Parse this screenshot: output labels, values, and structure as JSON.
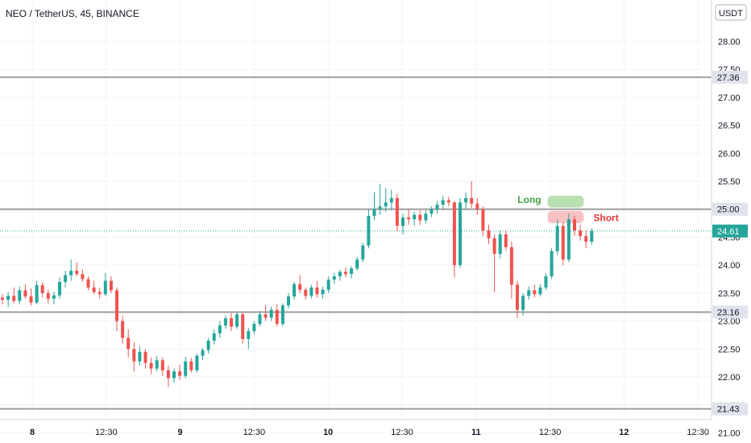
{
  "header": {
    "title": "NEO / TetherUS, 45, BINANCE"
  },
  "colors": {
    "up": "#26a69a",
    "down": "#ef5350",
    "grid": "#f0f3fa",
    "level": "#9e9e9e",
    "price_line": "#26a69a",
    "long_zone": "#b9e0b1",
    "short_zone": "#f8c2c5",
    "long_text": "#43a047",
    "short_text": "#e53935"
  },
  "chart_data": {
    "type": "candlestick",
    "title": "NEO / TetherUS, 45, BINANCE",
    "currency": "USDT",
    "ylim": [
      20.82,
      28.74
    ],
    "y_ticks": [
      "28.00",
      "27.50",
      "27.00",
      "26.50",
      "26.00",
      "25.50",
      "25.00",
      "24.50",
      "24.00",
      "23.50",
      "23.00",
      "22.50",
      "22.00",
      "21.50",
      "21.00"
    ],
    "x_ticks": [
      {
        "label": "8",
        "major": true
      },
      {
        "label": "12:30",
        "major": false
      },
      {
        "label": "9",
        "major": true
      },
      {
        "label": "12:30",
        "major": false
      },
      {
        "label": "10",
        "major": true
      },
      {
        "label": "12:30",
        "major": false
      },
      {
        "label": "11",
        "major": true
      },
      {
        "label": "12:30",
        "major": false
      },
      {
        "label": "12",
        "major": true
      },
      {
        "label": "12:30",
        "major": false
      }
    ],
    "levels": [
      {
        "value": 27.36,
        "label": "27.36"
      },
      {
        "value": 25.0,
        "label": "25.00"
      },
      {
        "value": 23.16,
        "label": "23.16"
      },
      {
        "value": 21.43,
        "label": "21.43"
      }
    ],
    "current_price": {
      "value": 24.61,
      "label": "24.61"
    },
    "annotations": [
      {
        "text": "Long",
        "kind": "long",
        "top": 25.24,
        "bottom": 25.03,
        "t0": 95.3,
        "t1": 101.6
      },
      {
        "text": "Short",
        "kind": "short",
        "top": 24.97,
        "bottom": 24.75,
        "t0": 95.3,
        "t1": 101.6
      }
    ],
    "candles": [
      [
        23.42,
        23.48,
        23.3,
        23.38
      ],
      [
        23.38,
        23.52,
        23.25,
        23.45
      ],
      [
        23.45,
        23.6,
        23.32,
        23.36
      ],
      [
        23.36,
        23.62,
        23.3,
        23.55
      ],
      [
        23.55,
        23.66,
        23.4,
        23.44
      ],
      [
        23.44,
        23.58,
        23.28,
        23.33
      ],
      [
        23.33,
        23.72,
        23.3,
        23.64
      ],
      [
        23.64,
        23.7,
        23.42,
        23.5
      ],
      [
        23.5,
        23.56,
        23.32,
        23.4
      ],
      [
        23.4,
        23.52,
        23.3,
        23.46
      ],
      [
        23.46,
        23.78,
        23.4,
        23.7
      ],
      [
        23.7,
        23.9,
        23.6,
        23.82
      ],
      [
        23.82,
        24.1,
        23.72,
        23.9
      ],
      [
        23.9,
        24.05,
        23.8,
        23.84
      ],
      [
        23.84,
        23.92,
        23.7,
        23.75
      ],
      [
        23.75,
        23.8,
        23.55,
        23.6
      ],
      [
        23.6,
        23.72,
        23.48,
        23.52
      ],
      [
        23.52,
        23.6,
        23.4,
        23.48
      ],
      [
        23.48,
        23.86,
        23.45,
        23.72
      ],
      [
        23.72,
        23.8,
        23.5,
        23.55
      ],
      [
        23.55,
        23.6,
        22.82,
        23.0
      ],
      [
        23.0,
        23.1,
        22.6,
        22.7
      ],
      [
        22.7,
        22.85,
        22.35,
        22.5
      ],
      [
        22.5,
        22.62,
        22.1,
        22.28
      ],
      [
        22.28,
        22.55,
        22.2,
        22.45
      ],
      [
        22.45,
        22.5,
        22.15,
        22.25
      ],
      [
        22.25,
        22.35,
        22.05,
        22.15
      ],
      [
        22.15,
        22.38,
        22.1,
        22.3
      ],
      [
        22.3,
        22.35,
        22.02,
        22.12
      ],
      [
        22.12,
        22.2,
        21.82,
        21.98
      ],
      [
        21.98,
        22.15,
        21.9,
        22.1
      ],
      [
        22.1,
        22.22,
        21.95,
        22.02
      ],
      [
        22.02,
        22.36,
        21.98,
        22.28
      ],
      [
        22.28,
        22.34,
        22.08,
        22.12
      ],
      [
        22.12,
        22.42,
        22.08,
        22.38
      ],
      [
        22.38,
        22.52,
        22.3,
        22.48
      ],
      [
        22.48,
        22.7,
        22.42,
        22.65
      ],
      [
        22.65,
        22.85,
        22.58,
        22.78
      ],
      [
        22.78,
        23.0,
        22.7,
        22.92
      ],
      [
        22.92,
        23.1,
        22.86,
        23.05
      ],
      [
        23.05,
        23.14,
        22.82,
        22.9
      ],
      [
        22.9,
        23.16,
        22.86,
        23.12
      ],
      [
        23.12,
        23.16,
        22.6,
        22.68
      ],
      [
        22.68,
        22.88,
        22.5,
        22.82
      ],
      [
        22.82,
        23.0,
        22.76,
        22.95
      ],
      [
        22.95,
        23.18,
        22.9,
        23.12
      ],
      [
        23.12,
        23.28,
        23.0,
        23.06
      ],
      [
        23.06,
        23.26,
        23.0,
        23.2
      ],
      [
        23.2,
        23.3,
        22.9,
        22.95
      ],
      [
        22.95,
        23.32,
        22.9,
        23.28
      ],
      [
        23.28,
        23.5,
        23.22,
        23.44
      ],
      [
        23.44,
        23.7,
        23.38,
        23.66
      ],
      [
        23.66,
        23.82,
        23.5,
        23.56
      ],
      [
        23.56,
        23.6,
        23.38,
        23.45
      ],
      [
        23.45,
        23.65,
        23.4,
        23.6
      ],
      [
        23.6,
        23.72,
        23.42,
        23.48
      ],
      [
        23.48,
        23.62,
        23.4,
        23.56
      ],
      [
        23.56,
        23.8,
        23.5,
        23.74
      ],
      [
        23.74,
        23.86,
        23.66,
        23.8
      ],
      [
        23.8,
        23.92,
        23.72,
        23.88
      ],
      [
        23.88,
        23.96,
        23.78,
        23.84
      ],
      [
        23.84,
        23.98,
        23.76,
        23.94
      ],
      [
        23.94,
        24.15,
        23.9,
        24.1
      ],
      [
        24.1,
        24.4,
        24.05,
        24.35
      ],
      [
        24.35,
        25.0,
        24.3,
        24.88
      ],
      [
        24.88,
        25.3,
        24.8,
        25.0
      ],
      [
        25.0,
        25.45,
        24.9,
        25.05
      ],
      [
        25.05,
        25.38,
        24.95,
        25.12
      ],
      [
        25.12,
        25.35,
        24.98,
        25.2
      ],
      [
        25.2,
        25.28,
        24.6,
        24.7
      ],
      [
        24.7,
        24.92,
        24.55,
        24.85
      ],
      [
        24.85,
        25.0,
        24.72,
        24.82
      ],
      [
        24.82,
        24.95,
        24.7,
        24.9
      ],
      [
        24.9,
        24.98,
        24.72,
        24.8
      ],
      [
        24.8,
        24.98,
        24.74,
        24.92
      ],
      [
        24.92,
        25.05,
        24.86,
        25.0
      ],
      [
        25.0,
        25.15,
        24.92,
        25.08
      ],
      [
        25.08,
        25.24,
        25.0,
        25.16
      ],
      [
        25.16,
        25.22,
        25.05,
        25.12
      ],
      [
        25.12,
        25.14,
        23.78,
        24.0
      ],
      [
        24.0,
        25.2,
        23.95,
        25.12
      ],
      [
        25.12,
        25.3,
        25.0,
        25.2
      ],
      [
        25.2,
        25.5,
        25.02,
        25.1
      ],
      [
        25.1,
        25.2,
        24.9,
        25.0
      ],
      [
        25.0,
        25.05,
        24.52,
        24.62
      ],
      [
        24.62,
        24.72,
        24.38,
        24.48
      ],
      [
        24.48,
        24.55,
        23.52,
        24.2
      ],
      [
        24.2,
        24.62,
        24.12,
        24.55
      ],
      [
        24.55,
        24.62,
        24.26,
        24.32
      ],
      [
        24.32,
        24.42,
        23.4,
        23.65
      ],
      [
        23.65,
        23.72,
        23.05,
        23.2
      ],
      [
        23.2,
        23.5,
        23.1,
        23.45
      ],
      [
        23.45,
        23.62,
        23.38,
        23.55
      ],
      [
        23.55,
        23.65,
        23.42,
        23.48
      ],
      [
        23.48,
        23.66,
        23.44,
        23.6
      ],
      [
        23.6,
        23.85,
        23.55,
        23.8
      ],
      [
        23.8,
        24.3,
        23.75,
        24.25
      ],
      [
        24.25,
        24.82,
        24.18,
        24.7
      ],
      [
        24.7,
        24.76,
        24.0,
        24.1
      ],
      [
        24.1,
        24.92,
        24.05,
        24.82
      ],
      [
        24.82,
        24.88,
        24.52,
        24.62
      ],
      [
        24.62,
        24.72,
        24.44,
        24.52
      ],
      [
        24.52,
        24.62,
        24.3,
        24.42
      ],
      [
        24.42,
        24.66,
        24.36,
        24.61
      ]
    ]
  }
}
